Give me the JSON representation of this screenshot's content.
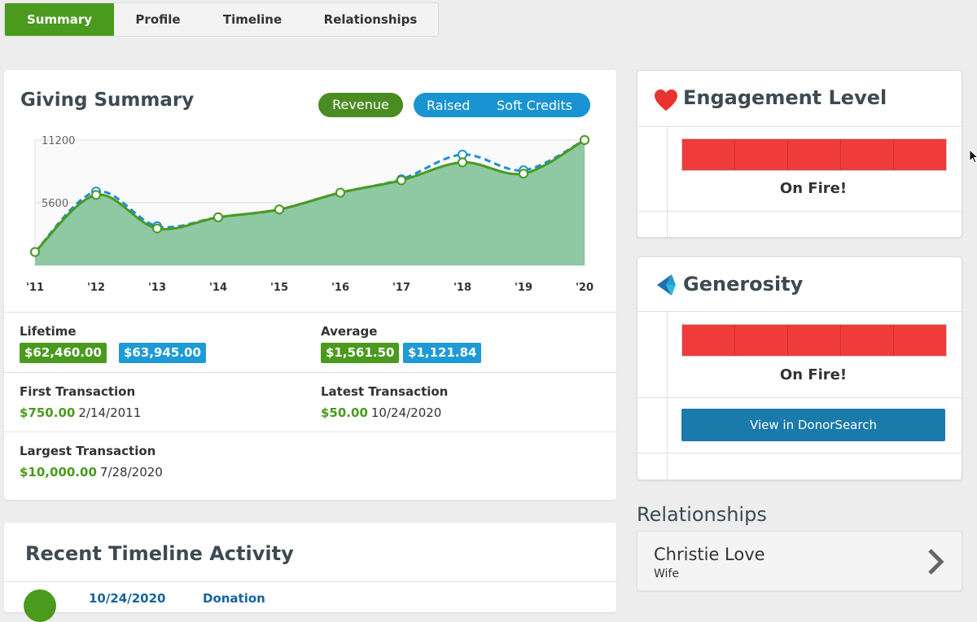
{
  "tabs": [
    {
      "label": "Summary",
      "active": true
    },
    {
      "label": "Profile"
    },
    {
      "label": "Timeline"
    },
    {
      "label": "Relationships"
    }
  ],
  "giving_summary": {
    "title": "Giving Summary",
    "toggle_revenue": "Revenue",
    "toggle_raised": "Raised",
    "toggle_soft_credits": "Soft Credits",
    "lifetime_label": "Lifetime",
    "lifetime_revenue": "$62,460.00",
    "lifetime_raised": "$63,945.00",
    "average_label": "Average",
    "average_revenue": "$1,561.50",
    "average_raised": "$1,121.84",
    "first_label": "First Transaction",
    "first_amount": "$750.00",
    "first_date": "2/14/2011",
    "latest_label": "Latest Transaction",
    "latest_amount": "$50.00",
    "latest_date": "10/24/2020",
    "largest_label": "Largest Transaction",
    "largest_amount": "$10,000.00",
    "largest_date": "7/28/2020"
  },
  "chart_data": {
    "type": "area",
    "x": [
      "'11",
      "'12",
      "'13",
      "'14",
      "'15",
      "'16",
      "'17",
      "'18",
      "'19",
      "'20"
    ],
    "series": [
      {
        "values": [
          1200,
          6300,
          3300,
          4300,
          5000,
          6500,
          7600,
          9200,
          8200,
          11200
        ],
        "color": "#4a9a1e",
        "style": "solid-fill"
      },
      {
        "values": [
          1200,
          6600,
          3500,
          4300,
          5000,
          6500,
          7700,
          9900,
          8500,
          11200
        ],
        "color": "#1e8fd6",
        "style": "dashed"
      }
    ],
    "ylabels": [
      "11200",
      "5600"
    ],
    "yticks": [
      11200,
      5600
    ],
    "ylim": [
      0,
      11200
    ],
    "grid": true
  },
  "timeline": {
    "title": "Recent Timeline Activity",
    "date": "10/24/2020",
    "type": "Donation"
  },
  "engagement": {
    "title": "Engagement Level",
    "level_label": "On Fire!",
    "level": 1.0
  },
  "generosity": {
    "title": "Generosity",
    "level_label": "On Fire!",
    "level": 1.0,
    "button_label": "View in DonorSearch"
  },
  "relationships": {
    "heading": "Relationships",
    "name": "Christie Love",
    "role": "Wife"
  },
  "colors": {
    "accent_green": "#4a9a1e",
    "accent_blue": "#1e9ad6",
    "meter_red": "#ef3c3a",
    "button_blue": "#1a7aab"
  }
}
